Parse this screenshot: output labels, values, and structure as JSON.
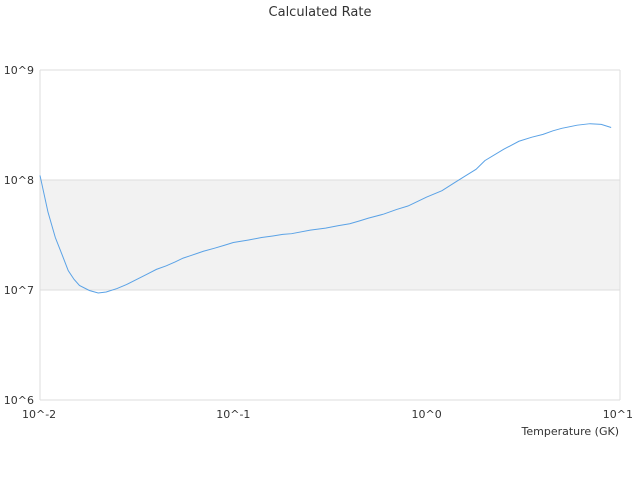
{
  "chart_data": {
    "type": "line",
    "title": "Calculated Rate",
    "xlabel": "Temperature (GK)",
    "ylabel": "",
    "x_scale": "log",
    "y_scale": "log",
    "xlim": [
      0.01,
      10
    ],
    "ylim": [
      1000000,
      1000000000
    ],
    "x_ticks": [
      "10^-2",
      "10^-1",
      "10^0",
      "10^1"
    ],
    "y_ticks": [
      "10^6",
      "10^7",
      "10^8",
      "10^9"
    ],
    "grid": true,
    "legend": "none",
    "band": {
      "from": 10000000,
      "to": 100000000,
      "color": "#f2f2f2"
    },
    "line_color": "#5aa2e6",
    "series": [
      {
        "x": [
          0.01,
          0.011,
          0.012,
          0.013,
          0.014,
          0.015,
          0.016,
          0.018,
          0.02,
          0.022,
          0.025,
          0.028,
          0.032,
          0.036,
          0.04,
          0.045,
          0.05,
          0.055,
          0.06,
          0.07,
          0.08,
          0.09,
          0.1,
          0.12,
          0.14,
          0.16,
          0.18,
          0.2,
          0.25,
          0.3,
          0.35,
          0.4,
          0.45,
          0.5,
          0.6,
          0.7,
          0.8,
          0.9,
          1.0,
          1.2,
          1.4,
          1.6,
          1.8,
          2.0,
          2.5,
          3.0,
          3.5,
          4.0,
          4.5,
          5.0,
          6.0,
          7.0,
          8.0,
          9.0
        ],
        "y": [
          110000000,
          51000000,
          30000000,
          21000000,
          15000000,
          12500000,
          11000000,
          9900000,
          9400000,
          9600000,
          10300000,
          11200000,
          12600000,
          14000000,
          15400000,
          16600000,
          18000000,
          19500000,
          20500000,
          22500000,
          24000000,
          25500000,
          27000000,
          28500000,
          30000000,
          31000000,
          32000000,
          32500000,
          35000000,
          36500000,
          38500000,
          40000000,
          42500000,
          45000000,
          49000000,
          54000000,
          58000000,
          64000000,
          70000000,
          80000000,
          95000000,
          110000000,
          125000000,
          150000000,
          190000000,
          225000000,
          245000000,
          260000000,
          280000000,
          295000000,
          315000000,
          325000000,
          320000000,
          300000000
        ]
      }
    ]
  }
}
